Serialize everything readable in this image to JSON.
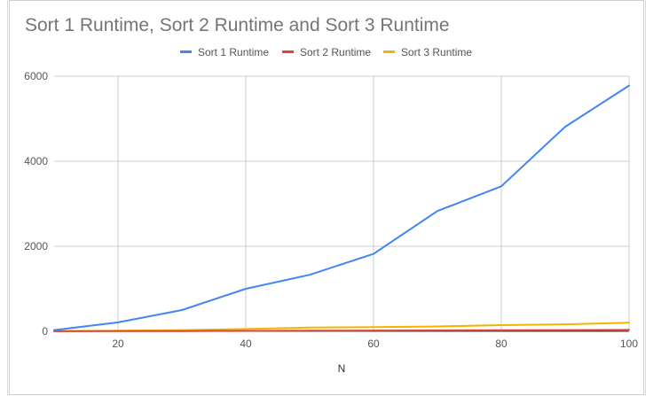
{
  "chart_data": {
    "type": "line",
    "title": "Sort 1 Runtime, Sort 2 Runtime and Sort 3 Runtime",
    "xlabel": "N",
    "ylabel": "",
    "xlim": [
      10,
      100
    ],
    "ylim": [
      0,
      6000
    ],
    "x_ticks": [
      20,
      40,
      60,
      80,
      100
    ],
    "y_ticks": [
      0,
      2000,
      4000,
      6000
    ],
    "grid": true,
    "legend_position": "top",
    "x": [
      10,
      20,
      30,
      40,
      50,
      60,
      70,
      80,
      90,
      100
    ],
    "series": [
      {
        "name": "Sort 1 Runtime",
        "color": "#4285f4",
        "values": [
          30,
          210,
          500,
          1000,
          1330,
          1820,
          2830,
          3410,
          4810,
          5780
        ]
      },
      {
        "name": "Sort 2 Runtime",
        "color": "#db4437",
        "values": [
          2,
          4,
          7,
          10,
          14,
          18,
          22,
          26,
          30,
          34
        ]
      },
      {
        "name": "Sort 3 Runtime",
        "color": "#f4b400",
        "values": [
          5,
          15,
          30,
          55,
          90,
          100,
          115,
          145,
          165,
          205
        ]
      }
    ]
  }
}
